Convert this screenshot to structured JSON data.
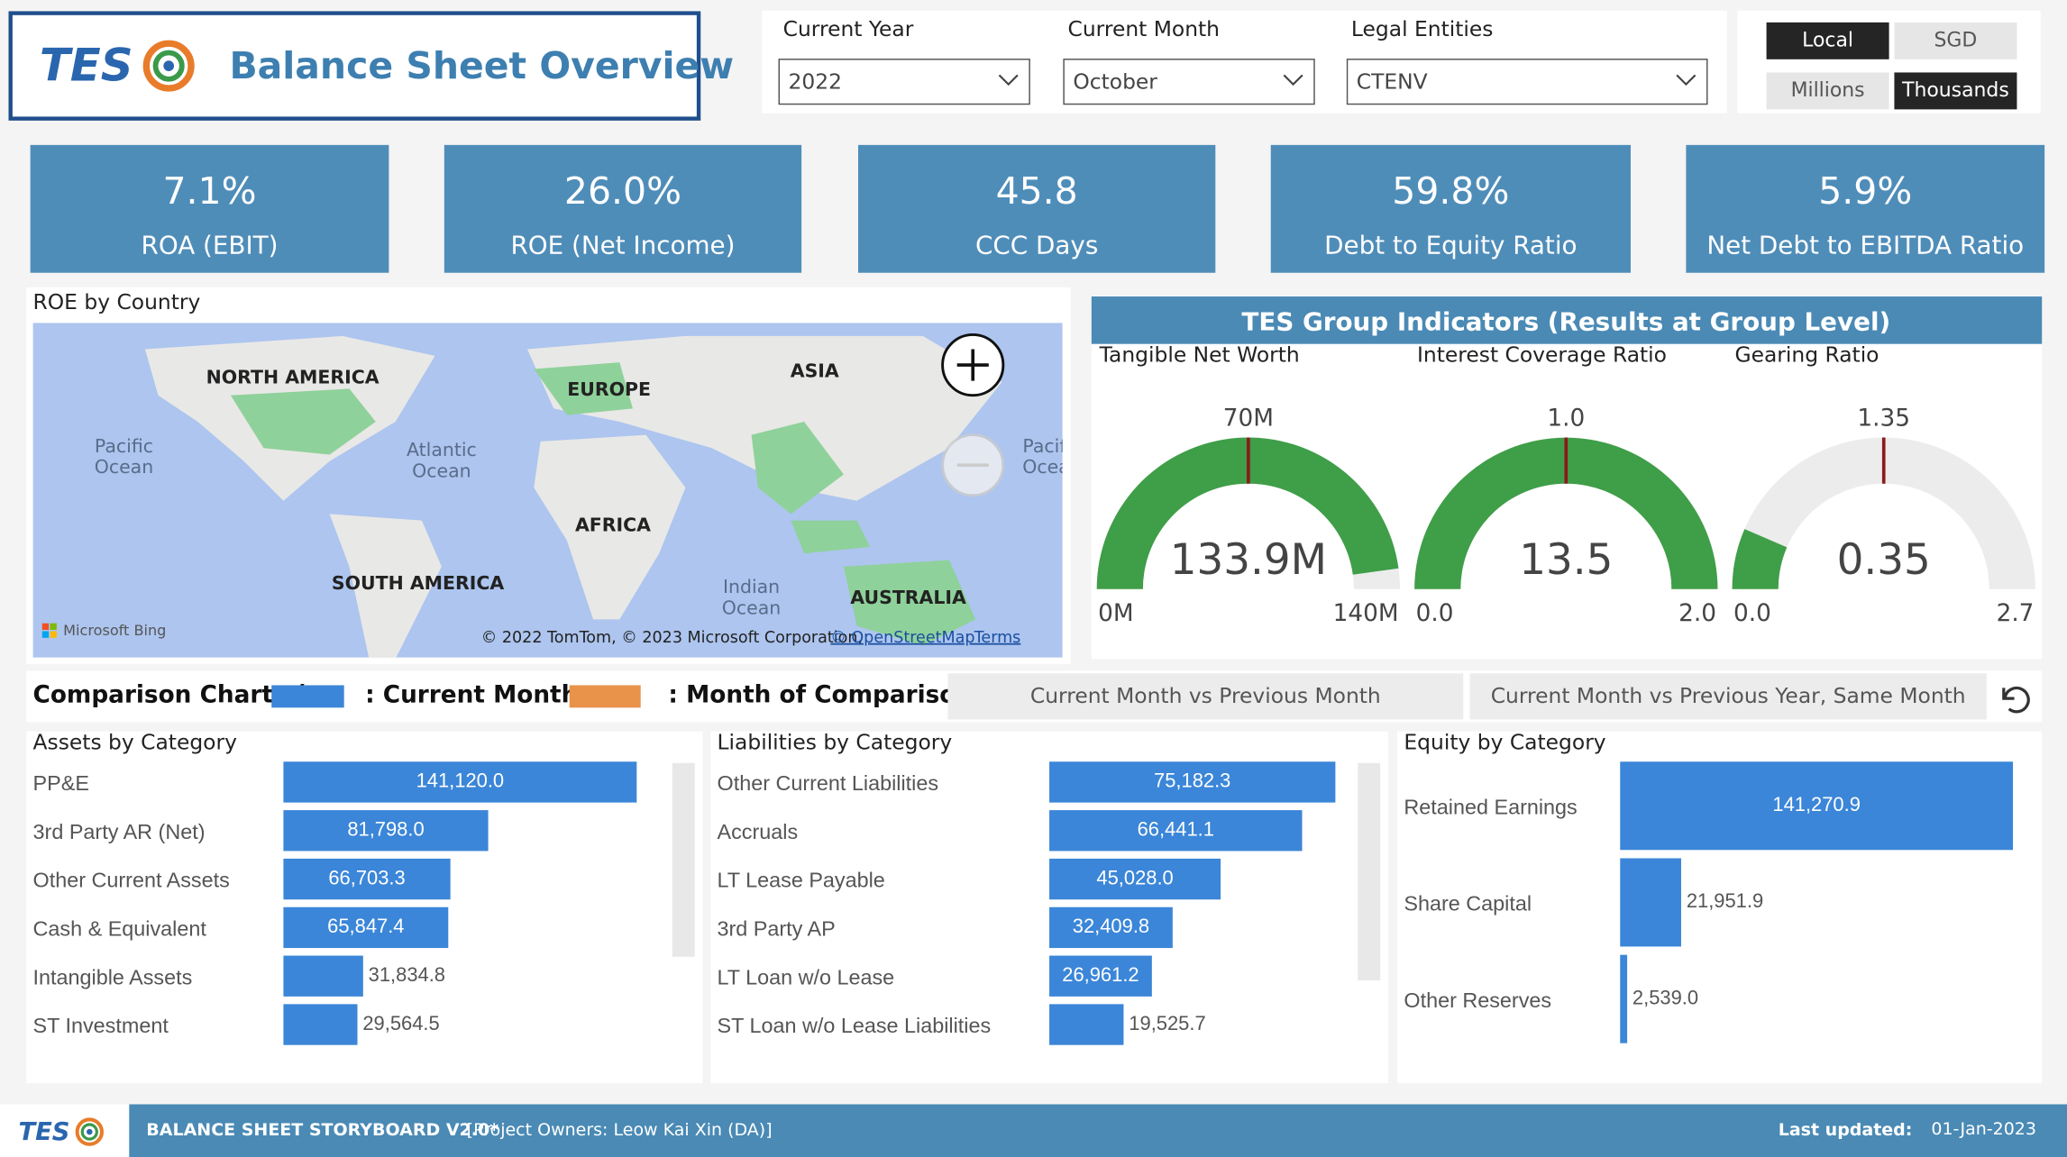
{
  "header": {
    "logo_text": "TES",
    "title": "Balance Sheet Overview"
  },
  "filters": [
    {
      "label": "Current Year",
      "value": "2022"
    },
    {
      "label": "Current Month",
      "value": "October"
    },
    {
      "label": "Legal Entities",
      "value": "CTENV"
    }
  ],
  "toggles": [
    {
      "options": [
        "Local",
        "SGD"
      ],
      "selected": 0
    },
    {
      "options": [
        "Millions",
        "Thousands"
      ],
      "selected": 1
    }
  ],
  "kpis": [
    {
      "value": "7.1%",
      "label": "ROA (EBIT)"
    },
    {
      "value": "26.0%",
      "label": "ROE (Net Income)"
    },
    {
      "value": "45.8",
      "label": "CCC Days"
    },
    {
      "value": "59.8%",
      "label": "Debt to Equity Ratio"
    },
    {
      "value": "5.9%",
      "label": "Net Debt to EBITDA Ratio"
    }
  ],
  "map": {
    "title": "ROE by Country",
    "continents": [
      "NORTH AMERICA",
      "EUROPE",
      "ASIA",
      "AFRICA",
      "SOUTH AMERICA",
      "AUSTRALIA"
    ],
    "oceans": [
      [
        "Pacific",
        "Ocean"
      ],
      [
        "Atlantic",
        "Ocean"
      ],
      [
        "Indian",
        "Ocean"
      ],
      [
        "Pacific",
        "Ocean"
      ]
    ],
    "bing": "Microsoft Bing",
    "attribution": "© 2022 TomTom, © 2023 Microsoft Corporation,",
    "osm": "© OpenStreetMap",
    "terms": "Terms"
  },
  "indicators": {
    "title": "TES Group Indicators (Results at Group Level)",
    "gauges": [
      {
        "name": "Tangible Net Worth",
        "min": {
          "value": 0,
          "label": "0M"
        },
        "max": {
          "value": 140,
          "label": "140M"
        },
        "target": {
          "value": 70,
          "label": "70M"
        },
        "value": {
          "value": 133.9,
          "label": "133.9M"
        }
      },
      {
        "name": "Interest Coverage Ratio",
        "min": {
          "value": 0,
          "label": "0.0"
        },
        "max": {
          "value": 2,
          "label": "2.0"
        },
        "target": {
          "value": 1,
          "label": "1.0"
        },
        "value": 13.5
      },
      {
        "name": "Gearing Ratio",
        "min": {
          "value": 0,
          "label": "0.0"
        },
        "max": 2.7,
        "target": 1.35,
        "value": 0.35
      }
    ]
  },
  "comparison": {
    "title_parts": [
      "Comparison Charts (",
      ": Current Month,",
      ": Month of Comparison)"
    ],
    "current_color": "#3b86d8",
    "comparison_color": "#e8924a",
    "buttons": [
      "Current Month vs Previous Month",
      "Current Month vs Previous Year, Same Month"
    ]
  },
  "bar_charts": [
    {
      "title": "Assets by Category",
      "color": "#3b86d8",
      "categories": [
        "PP&E",
        "3rd Party AR (Net)",
        "Other Current Assets",
        "Cash & Equivalent",
        "Intangible Assets",
        "ST Investment"
      ],
      "values": [
        141120.0,
        81798.0,
        66703.3,
        65847.4,
        31834.8,
        29564.5
      ],
      "value_labels": [
        "141,120.0",
        "81,798.0",
        "66,703.3",
        "65,847.4",
        "31,834.8",
        "29,564.5"
      ]
    },
    {
      "title": "Liabilities by Category",
      "color": "#3b86d8",
      "categories": [
        "Other Current Liabilities",
        "Accruals",
        "LT Lease Payable",
        "3rd Party AP",
        "LT Loan w/o Lease",
        "ST Loan w/o Lease Liabilities"
      ],
      "values": [
        75182.3,
        66441.1,
        45028.0,
        32409.8,
        26961.2,
        19525.7
      ],
      "value_labels": [
        "75,182.3",
        "66,441.1",
        "45,028.0",
        "32,409.8",
        "26,961.2",
        "19,525.7"
      ]
    },
    {
      "title": "Equity by Category",
      "color": "#3b86d8",
      "categories": [
        "Retained Earnings",
        "Share Capital",
        "Other Reserves"
      ],
      "values": [
        141270.9,
        21951.9,
        2539.0
      ],
      "value_labels": [
        "141,270.9",
        "21,951.9",
        "2,539.0"
      ]
    }
  ],
  "footer": {
    "title": "BALANCE SHEET STORYBOARD V2.0*",
    "owners": "[Project Owners: Leow Kai Xin (DA)]",
    "updated_label": "Last updated:",
    "updated": "01-Jan-2023"
  }
}
